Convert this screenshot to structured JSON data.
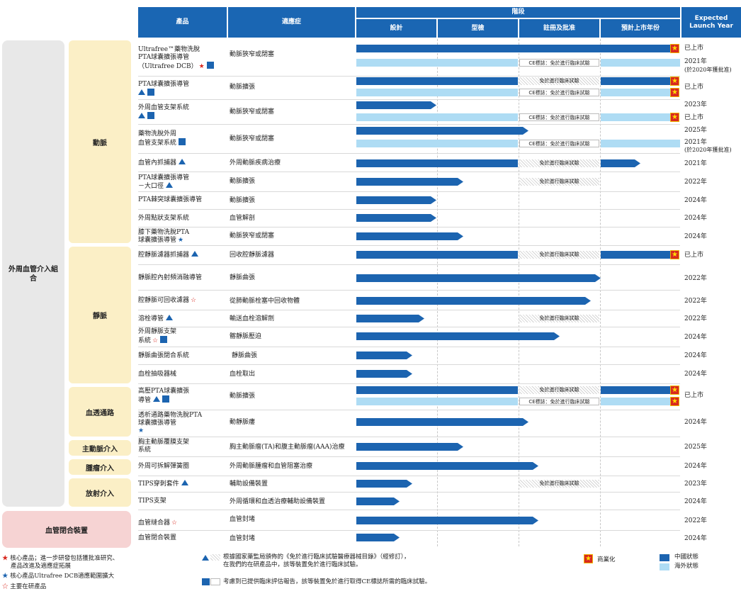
{
  "header": {
    "product": "產品",
    "indication": "適應症",
    "stage": "階段",
    "design": "設計",
    "prototype": "型檢",
    "registration": "註冊及批准",
    "launch_year_est": "預計上市年份",
    "expected": "Expected Launch Year"
  },
  "categories": {
    "outer_pvi": "外周血管介入組合",
    "artery": "動脈",
    "vein": "靜脈",
    "dialysis": "血透通路",
    "aortic": "主動脈介入",
    "tumor": "腫瘤介入",
    "radiology": "放射介入",
    "closure": "血管閉合裝置"
  },
  "rows": [
    {
      "name": "Ultrafree™藥物洗脫PTA球囊擴張導管（Ultrafree DCB）",
      "l1": "Ultrafree™藥物洗脫",
      "l2": "PTA球囊擴張導管",
      "l3": "（Ultrafree DCB）",
      "indication": "動脈狹窄或閉塞",
      "year1": "已上市",
      "year2": "2021年",
      "year3": "(於2020年獲批准)"
    },
    {
      "l1": "PTA球囊擴張導管",
      "indication": "動脈擴張",
      "year1": "已上市"
    },
    {
      "l1": "外周血管支架系統",
      "indication": "動脈狹窄或閉塞",
      "year1": "2023年",
      "year2": "已上市"
    },
    {
      "l1": "藥物洗脫外周",
      "l2": "血管支架系統",
      "indication": "動脈狹窄或閉塞",
      "year1": "2025年",
      "year2": "2021年",
      "year3": "(於2020年獲批准)"
    },
    {
      "l1": "血管內抓捕器",
      "indication": "外周動脈疾病治療",
      "year1": "2021年"
    },
    {
      "l1": "PTA球囊擴張導管",
      "l2": "－大口徑",
      "indication": "動脈擴張",
      "year1": "2022年"
    },
    {
      "l1": "PTA棘突球囊擴張導管",
      "indication": "動脈擴張",
      "year1": "2024年"
    },
    {
      "l1": "外周點狀支架系統",
      "indication": "血管解剖",
      "year1": "2024年"
    },
    {
      "l1": "膝下藥物洗脫PTA",
      "l2": "球囊擴張導管",
      "indication": "動脈狹窄或閉塞",
      "year1": "2024年"
    },
    {
      "l1": "腔靜脈濾器抓捕器",
      "indication": "回收腔靜脈濾器",
      "year1": "已上市"
    },
    {
      "l1": "靜脈腔內射頻消融導管",
      "indication": "靜脈曲張",
      "year1": "2022年"
    },
    {
      "l1": "腔靜脈可回收濾器",
      "indication": "從肺動脈栓塞中回收物體",
      "year1": "2022年"
    },
    {
      "l1": "溶栓導管",
      "indication": "輸送血栓溶解劑",
      "year1": "2022年"
    },
    {
      "l1": "外周靜脈支架",
      "l2": "系統",
      "indication": "髂靜脈壓迫",
      "year1": "2024年"
    },
    {
      "l1": "靜脈曲張閉合系統",
      "indication": "靜脈曲張",
      "year1": "2024年"
    },
    {
      "l1": "血栓抽吸器械",
      "indication": "血栓取出",
      "year1": "2024年"
    },
    {
      "l1": "高壓PTA球囊擴張",
      "l2": "導管",
      "indication": "動脈擴張",
      "year1": "已上市"
    },
    {
      "l1": "透析通路藥物洗脫PTA",
      "l2": "球囊擴張導管",
      "indication": "動靜脈瘻",
      "year1": "2024年"
    },
    {
      "l1": "胸主動脈覆膜支架",
      "l2": "系統",
      "indication": "胸主動脈瘤(TA)和腹主動脈瘤(AAA)治療",
      "year1": "2025年"
    },
    {
      "l1": "外周可拆解彈簧圈",
      "indication": "外周動脈腫瘤和血管阻塞治療",
      "year1": "2024年"
    },
    {
      "l1": "TIPS穿刺套件",
      "indication": "輔助設備裝置",
      "year1": "2023年"
    },
    {
      "l1": "TIPS支架",
      "indication": "外周循環和血透治療輔助設備裝置",
      "year1": "2024年"
    },
    {
      "l1": "血管縫合器",
      "indication": "血管封堵",
      "year1": "2022年"
    },
    {
      "l1": "血管閉合裝置",
      "indication": "血管封堵",
      "year1": "2024年"
    }
  ],
  "notes": {
    "exempt": "免於進行臨床試驗",
    "ce": "CE標誌：免於進行臨床試驗"
  },
  "legend": {
    "core": "核心產品；進一步研發包括獲批准研究、產品改進及適應症拓展",
    "core_l1": "核心產品；進一步研發包括獲批准研究、",
    "core_l2": "產品改進及適應症拓展",
    "core_dcb": "核心產品Ultrafree DCB適應範圍擴大",
    "key": "主要在研產品",
    "nmpa_l1": "根據國家藥監局頒佈的《免於進行臨床試驗醫療器械目錄》（經修訂），",
    "nmpa_l2": "在我們的在研產品中，該等裝置免於進行臨床試驗。",
    "ce_note": "考慮到已提供臨床評估報告，該等裝置免於進行取得CE標誌所需的臨床試驗。",
    "commercial": "商業化",
    "china": "中國狀態",
    "overseas": "海外狀態"
  },
  "colors": {
    "header": "#1a66b3",
    "china": "#1c64b0",
    "overseas": "#aedcf4",
    "flag": "#d8281f"
  }
}
